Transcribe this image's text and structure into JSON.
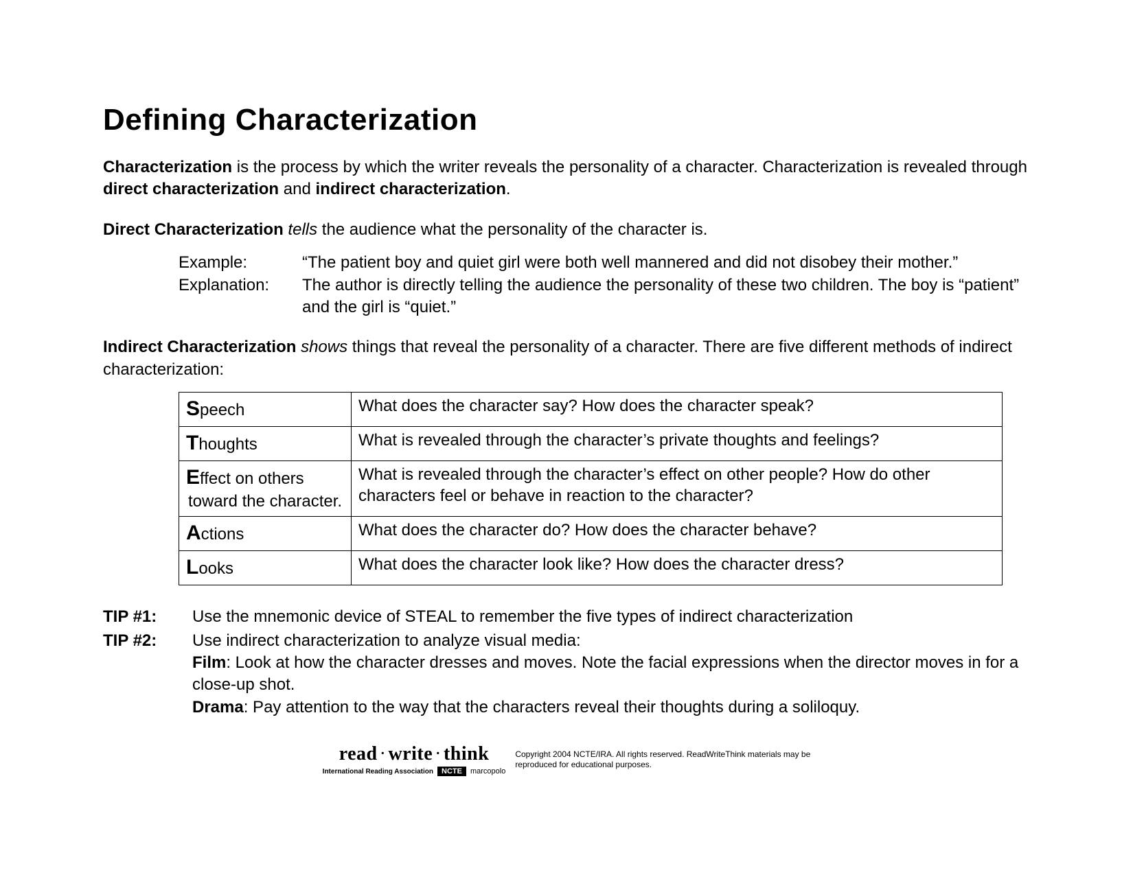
{
  "title": "Defining Characterization",
  "intro": {
    "bold1": "Characterization",
    "text1": " is the process by which the writer reveals the personality of a character. Characterization is revealed through ",
    "bold2": "direct characterization",
    "text2": " and ",
    "bold3": "indirect characterization",
    "text3": "."
  },
  "direct": {
    "lead_bold": "Direct Characterization",
    "lead_space": " ",
    "lead_italic": "tells",
    "lead_rest": " the audience what the personality of the character is.",
    "example_label": "Example:",
    "example_text": "“The patient boy and quiet girl were both well mannered and did not disobey their mother.”",
    "explanation_label": "Explanation:",
    "explanation_text": "The author is directly telling the audience the personality of these two children. The boy is “patient” and the girl is “quiet.”"
  },
  "indirect": {
    "lead_bold": "Indirect Characterization",
    "lead_space": " ",
    "lead_italic": "shows",
    "lead_rest": " things that reveal the personality of a character. There are five different methods of indirect characterization:"
  },
  "steal": [
    {
      "letter": "S",
      "rest": "peech",
      "sub": "",
      "desc": "What does the character say? How does the character speak?"
    },
    {
      "letter": "T",
      "rest": "houghts",
      "sub": "",
      "desc": "What is revealed through the character’s private thoughts and feelings?"
    },
    {
      "letter": "E",
      "rest": "ffect on others",
      "sub": "toward the character.",
      "desc": "What is revealed through the character’s effect on other people? How do other characters feel or behave in reaction to the character?"
    },
    {
      "letter": "A",
      "rest": "ctions",
      "sub": "",
      "desc": "What does the character do? How does the character behave?"
    },
    {
      "letter": "L",
      "rest": "ooks",
      "sub": "",
      "desc": "What does the character look like? How does the character dress?"
    }
  ],
  "tips": {
    "tip1_label": "TIP #1:",
    "tip1_body": "Use the mnemonic device of STEAL to remember the five types of indirect characterization",
    "tip2_label": "TIP #2:",
    "tip2_intro": "Use indirect characterization to analyze visual media:",
    "tip2_film_bold": "Film",
    "tip2_film_text": ": Look at how the character dresses and moves. Note the facial expressions when the director moves in for a close-up shot.",
    "tip2_drama_bold": "Drama",
    "tip2_drama_text": ": Pay attention to the way that the characters reveal their thoughts during a soliloquy."
  },
  "footer": {
    "brand_read": "read",
    "brand_write": "write",
    "brand_think": "think",
    "ncte": "NCTE",
    "marco": "marcopolo",
    "tiny": "International Reading Association",
    "copyright": "Copyright 2004 NCTE/IRA. All rights reserved. ReadWriteThink materials may be reproduced for educational purposes."
  },
  "style": {
    "background_color": "#ffffff",
    "text_color": "#000000",
    "title_fontsize_pt": 33,
    "body_fontsize_pt": 18,
    "table_border_color": "#000000",
    "font_family": "Verdana"
  }
}
